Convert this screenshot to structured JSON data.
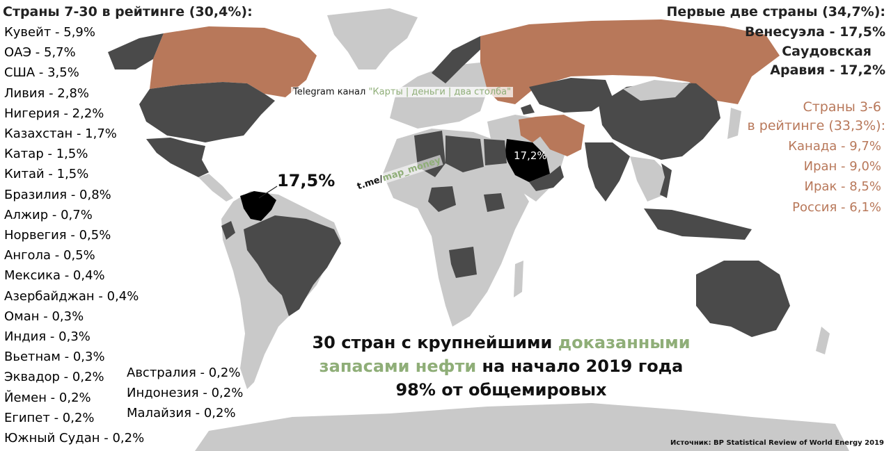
{
  "left_panel": {
    "header": "Страны 7-30 в рейтинге (30,4%):",
    "items": [
      "Кувейт - 5,9%",
      "ОАЭ - 5,7%",
      "США - 3,5%",
      "Ливия - 2,8%",
      "Нигерия - 2,2%",
      "Казахстан - 1,7%",
      "Катар - 1,5%",
      "Китай - 1,5%",
      "Бразилия - 0,8%",
      "Алжир - 0,7%",
      "Норвегия - 0,5%",
      "Ангола - 0,5%",
      "Мексика - 0,4%",
      "Азербайджан - 0,4%",
      "Оман - 0,3%",
      "Индия - 0,3%",
      "Вьетнам - 0,3%",
      "Эквадор - 0,2%",
      "Йемен - 0,2%",
      "Египет - 0,2%",
      "Южный Судан - 0,2%"
    ],
    "items_col2": [
      "Австралия - 0,2%",
      "Индонезия - 0,2%",
      "Малайзия - 0,2%"
    ]
  },
  "top_two": {
    "header": "Первые две страны (34,7%):",
    "venezuela": "Венесуэла - 17,5%",
    "saudi_line1": "Саудовская",
    "saudi_line2": "Аравия - 17,2%"
  },
  "ranks_3_6": {
    "header_line1": "Страны 3-6",
    "header_line2": "в рейтинге (33,3%):",
    "items": [
      "Канада - 9,7%",
      "Иран - 9,0%",
      "Ирак - 8,5%",
      "Россия - 6,1%"
    ]
  },
  "map_labels": {
    "venezuela_value": "17,5%",
    "saudi_value": "17,2%"
  },
  "watermark": {
    "telegram_prefix": "Telegram канал ",
    "telegram_name": "\"Карты | деньги | два столба\"",
    "link_prefix": "t.me/",
    "link_suffix": "map_money"
  },
  "title": {
    "part1": "30 стран с крупнейшими ",
    "part2_green": "доказанными",
    "part3_green": "запасами нефти",
    "part4": " на начало 2019 года",
    "line3": "98% от общемировых"
  },
  "source": "Источник: BP Statistical Review of World Energy 2019",
  "colors": {
    "background": "#ffffff",
    "land_other": "#c9c9c9",
    "land_top30": "#4a4a4a",
    "land_rank3_6": "#b8785a",
    "land_top2": "#000000",
    "accent_green": "#8fae78"
  }
}
